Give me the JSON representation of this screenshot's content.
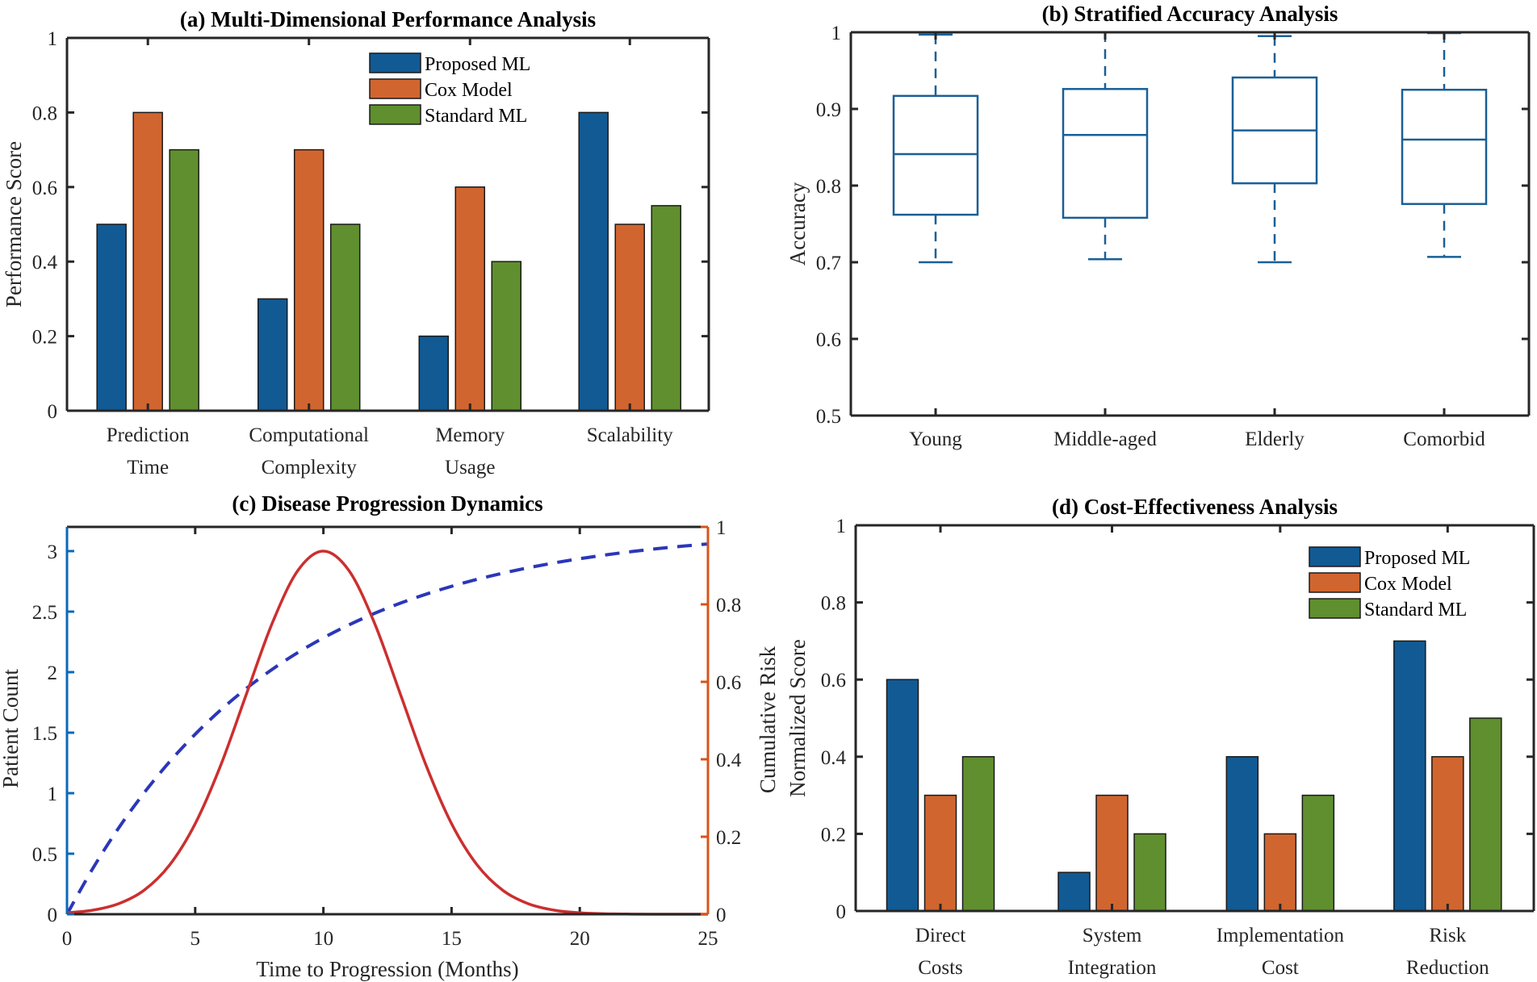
{
  "colors": {
    "proposed": "#115a94",
    "cox": "#d0652f",
    "standard": "#5f8f2e",
    "box": "#1a5f96",
    "count_axis": "#0b68b8",
    "risk_axis": "#d95319",
    "risk_curve": "#2b37b8",
    "count_curve": "#cc2f2f"
  },
  "chart_data": [
    {
      "type": "bar",
      "title": "(a) Multi-Dimensional Performance Analysis",
      "xlabel": "",
      "ylabel": "Performance Score",
      "ylim": [
        0,
        1
      ],
      "yticks": [
        "0",
        "0.2",
        "0.4",
        "0.6",
        "0.8",
        "1"
      ],
      "categories": [
        [
          "Prediction",
          "Time"
        ],
        [
          "Computational",
          "Complexity"
        ],
        [
          "Memory",
          "Usage"
        ],
        [
          "Scalability",
          ""
        ]
      ],
      "series": [
        {
          "name": "Proposed ML",
          "values": [
            0.5,
            0.3,
            0.2,
            0.8
          ]
        },
        {
          "name": "Cox Model",
          "values": [
            0.8,
            0.7,
            0.6,
            0.5
          ]
        },
        {
          "name": "Standard ML",
          "values": [
            0.7,
            0.5,
            0.4,
            0.55
          ]
        }
      ],
      "legend": "top-right",
      "grid": false
    },
    {
      "type": "box",
      "title": "(b) Stratified Accuracy Analysis",
      "xlabel": "",
      "ylabel": "Accuracy",
      "ylim": [
        0.5,
        1
      ],
      "yticks": [
        "0.5",
        "0.6",
        "0.7",
        "0.8",
        "0.9",
        "1"
      ],
      "categories": [
        "Young",
        "Middle-aged",
        "Elderly",
        "Comorbid"
      ],
      "boxes": [
        {
          "min": 0.7,
          "q1": 0.762,
          "median": 0.841,
          "q3": 0.917,
          "max": 0.997
        },
        {
          "min": 0.704,
          "q1": 0.758,
          "median": 0.866,
          "q3": 0.926,
          "max": 1.0
        },
        {
          "min": 0.7,
          "q1": 0.803,
          "median": 0.872,
          "q3": 0.941,
          "max": 0.995
        },
        {
          "min": 0.707,
          "q1": 0.776,
          "median": 0.86,
          "q3": 0.925,
          "max": 0.999
        }
      ],
      "grid": false
    },
    {
      "type": "line",
      "title": "(c) Disease Progression Dynamics",
      "xlabel": "Time to Progression (Months)",
      "ylabel": "Patient Count",
      "ylabel_right": "Cumulative Risk",
      "xlim": [
        0,
        25
      ],
      "ylim": [
        0,
        3.2
      ],
      "ylim_right": [
        0,
        1
      ],
      "xticks": [
        "0",
        "5",
        "10",
        "15",
        "20",
        "25"
      ],
      "yticks": [
        "0",
        "0.5",
        "1",
        "1.5",
        "2",
        "2.5",
        "3"
      ],
      "yticks_right": [
        "0",
        "0.2",
        "0.4",
        "0.6",
        "0.8",
        "1"
      ],
      "x": [
        0,
        1,
        2,
        3,
        4,
        5,
        6,
        7,
        8,
        9,
        10,
        11,
        12,
        13,
        14,
        15,
        16,
        17,
        18,
        19,
        20,
        21,
        22,
        23,
        24,
        25
      ],
      "series": [
        {
          "axis": "left",
          "style": "solid",
          "values": [
            0.0116,
            0.0333,
            0.0857,
            0.197,
            0.406,
            0.748,
            1.233,
            1.82,
            2.402,
            2.838,
            3.0,
            2.838,
            2.402,
            1.82,
            1.233,
            0.748,
            0.406,
            0.197,
            0.0857,
            0.0333,
            0.0116,
            0.0036,
            0.001,
            0.00025,
            6e-05,
            1e-05
          ]
        },
        {
          "axis": "right",
          "style": "dashed",
          "values": [
            0,
            0.1175,
            0.2212,
            0.3127,
            0.3935,
            0.4647,
            0.5276,
            0.5831,
            0.6321,
            0.6753,
            0.7135,
            0.7471,
            0.7769,
            0.8031,
            0.8262,
            0.8466,
            0.8647,
            0.8806,
            0.8946,
            0.907,
            0.9179,
            0.9276,
            0.9361,
            0.9437,
            0.9502,
            0.9561
          ]
        }
      ],
      "grid": false
    },
    {
      "type": "bar",
      "title": "(d) Cost-Effectiveness Analysis",
      "xlabel": "",
      "ylabel": "Normalized Score",
      "ylim": [
        0,
        1
      ],
      "yticks": [
        "0",
        "0.2",
        "0.4",
        "0.6",
        "0.8",
        "1"
      ],
      "categories": [
        [
          "Direct",
          "Costs"
        ],
        [
          "System",
          "Integration"
        ],
        [
          "Implementation",
          "Cost"
        ],
        [
          "Risk",
          "Reduction"
        ]
      ],
      "series": [
        {
          "name": "Proposed ML",
          "values": [
            0.6,
            0.1,
            0.4,
            0.7
          ]
        },
        {
          "name": "Cox Model",
          "values": [
            0.3,
            0.3,
            0.2,
            0.4
          ]
        },
        {
          "name": "Standard ML",
          "values": [
            0.4,
            0.2,
            0.3,
            0.5
          ]
        }
      ],
      "legend": "top-right",
      "grid": false
    }
  ]
}
